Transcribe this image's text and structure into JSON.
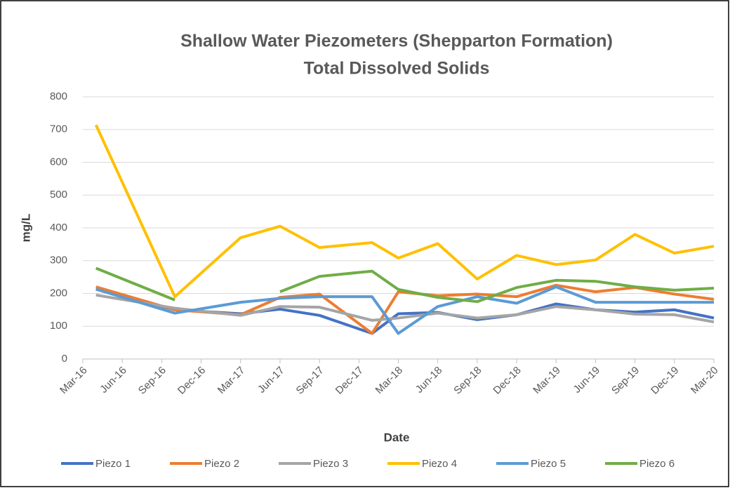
{
  "chart_data": {
    "type": "line",
    "title": "Shallow Water Piezometers (Shepparton Formation)",
    "subtitle": "Total Dissolved Solids",
    "x_label": "Date",
    "y_label": "mg/L",
    "x": [
      "2016-04",
      "2016-10",
      "2017-03",
      "2017-06",
      "2017-09",
      "2018-01",
      "2018-03",
      "2018-06",
      "2018-09",
      "2018-12",
      "2019-03",
      "2019-06",
      "2019-09",
      "2019-12",
      "2020-03"
    ],
    "xlim": [
      "2016-03",
      "2020-03"
    ],
    "xticks": [
      {
        "value": "2016-03",
        "label": "Mar-16"
      },
      {
        "value": "2016-06",
        "label": "Jun-16"
      },
      {
        "value": "2016-09",
        "label": "Sep-16"
      },
      {
        "value": "2016-12",
        "label": "Dec-16"
      },
      {
        "value": "2017-03",
        "label": "Mar-17"
      },
      {
        "value": "2017-06",
        "label": "Jun-17"
      },
      {
        "value": "2017-09",
        "label": "Sep-17"
      },
      {
        "value": "2017-12",
        "label": "Dec-17"
      },
      {
        "value": "2018-03",
        "label": "Mar-18"
      },
      {
        "value": "2018-06",
        "label": "Jun-18"
      },
      {
        "value": "2018-09",
        "label": "Sep-18"
      },
      {
        "value": "2018-12",
        "label": "Dec-18"
      },
      {
        "value": "2019-03",
        "label": "Mar-19"
      },
      {
        "value": "2019-06",
        "label": "Jun-19"
      },
      {
        "value": "2019-09",
        "label": "Sep-19"
      },
      {
        "value": "2019-12",
        "label": "Dec-19"
      },
      {
        "value": "2020-03",
        "label": "Mar-20"
      }
    ],
    "ylim": [
      0,
      800
    ],
    "yticks": [
      0,
      100,
      200,
      300,
      400,
      500,
      600,
      700,
      800
    ],
    "grid": true,
    "legend": "bottom",
    "series": [
      {
        "name": "Piezo 1",
        "color": "#4472c4",
        "values": [
          213,
          150,
          138,
          152,
          133,
          78,
          138,
          142,
          120,
          135,
          168,
          150,
          143,
          150,
          125
        ]
      },
      {
        "name": "Piezo 2",
        "color": "#ed7d31",
        "values": [
          220,
          150,
          135,
          188,
          198,
          78,
          205,
          193,
          198,
          190,
          225,
          205,
          218,
          198,
          182
        ]
      },
      {
        "name": "Piezo 3",
        "color": "#a5a5a5",
        "values": [
          195,
          155,
          133,
          160,
          158,
          118,
          125,
          140,
          125,
          135,
          160,
          150,
          137,
          135,
          113
        ]
      },
      {
        "name": "Piezo 4",
        "color": "#ffc000",
        "values": [
          714,
          190,
          370,
          405,
          340,
          355,
          308,
          352,
          244,
          316,
          288,
          302,
          380,
          323,
          344
        ]
      },
      {
        "name": "Piezo 5",
        "color": "#5b9bd5",
        "values": [
          213,
          140,
          173,
          185,
          190,
          190,
          78,
          160,
          190,
          170,
          220,
          173,
          173,
          173,
          173
        ]
      },
      {
        "name": "Piezo 6",
        "color": "#70ad47",
        "values": [
          277,
          180,
          null,
          205,
          252,
          268,
          212,
          188,
          175,
          218,
          240,
          237,
          220,
          210,
          216
        ]
      }
    ]
  }
}
